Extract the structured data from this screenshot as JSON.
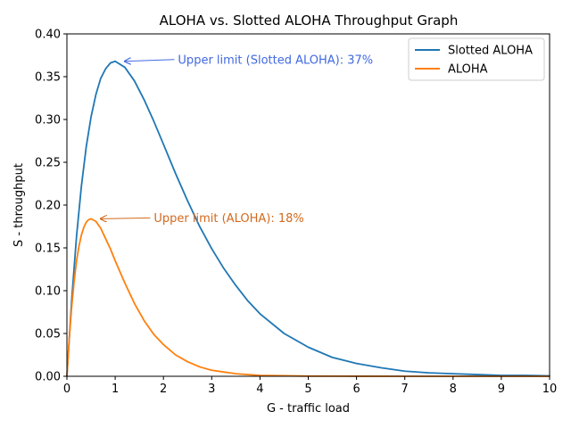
{
  "chart_data": {
    "type": "line",
    "title": "ALOHA vs. Slotted ALOHA Throughput Graph",
    "xlabel": "G - traffic load",
    "ylabel": "S - throughput",
    "xlim": [
      0,
      10
    ],
    "ylim": [
      0,
      0.4
    ],
    "x_ticks": [
      "0",
      "1",
      "2",
      "3",
      "4",
      "5",
      "6",
      "7",
      "8",
      "9",
      "10"
    ],
    "y_ticks": [
      "0.00",
      "0.05",
      "0.10",
      "0.15",
      "0.20",
      "0.25",
      "0.30",
      "0.35",
      "0.40"
    ],
    "grid": false,
    "legend_position": "upper-right",
    "series": [
      {
        "name": "Slotted ALOHA",
        "color": "#1f77b4",
        "x": [
          0,
          0.1,
          0.2,
          0.3,
          0.4,
          0.5,
          0.6,
          0.7,
          0.8,
          0.9,
          1.0,
          1.2,
          1.4,
          1.6,
          1.8,
          2.0,
          2.25,
          2.5,
          2.75,
          3.0,
          3.25,
          3.5,
          3.75,
          4.0,
          4.5,
          5.0,
          5.5,
          6.0,
          6.5,
          7.0,
          7.5,
          8.0,
          8.5,
          9.0,
          9.5,
          10.0
        ],
        "y": [
          0,
          0.09,
          0.164,
          0.222,
          0.268,
          0.303,
          0.329,
          0.348,
          0.359,
          0.366,
          0.368,
          0.361,
          0.345,
          0.323,
          0.298,
          0.271,
          0.237,
          0.205,
          0.175,
          0.149,
          0.126,
          0.106,
          0.088,
          0.073,
          0.05,
          0.034,
          0.022,
          0.015,
          0.01,
          0.006,
          0.004,
          0.003,
          0.002,
          0.001,
          0.001,
          0.0005
        ]
      },
      {
        "name": "ALOHA",
        "color": "#ff7f0e",
        "x": [
          0,
          0.05,
          0.1,
          0.15,
          0.2,
          0.25,
          0.3,
          0.35,
          0.4,
          0.45,
          0.5,
          0.6,
          0.7,
          0.8,
          0.9,
          1.0,
          1.2,
          1.4,
          1.6,
          1.8,
          2.0,
          2.25,
          2.5,
          2.75,
          3.0,
          3.5,
          4.0,
          4.5,
          5.0,
          6.0,
          7.0,
          8.0,
          9.0,
          10.0
        ],
        "y": [
          0,
          0.045,
          0.082,
          0.111,
          0.135,
          0.152,
          0.165,
          0.174,
          0.18,
          0.183,
          0.184,
          0.181,
          0.173,
          0.161,
          0.149,
          0.135,
          0.109,
          0.085,
          0.065,
          0.049,
          0.037,
          0.025,
          0.017,
          0.011,
          0.007,
          0.003,
          0.001,
          0.0006,
          0.0002,
          4e-05,
          1e-05,
          0,
          0,
          0
        ]
      }
    ],
    "annotations": [
      {
        "text": "Upper limit (Slotted ALOHA): 37%",
        "color": "#4169e1",
        "arrow_x": 1.2,
        "arrow_y": 0.368,
        "text_x": 2.3,
        "text_y": 0.37
      },
      {
        "text": "Upper limit (ALOHA): 18%",
        "color": "#d2691e",
        "arrow_x": 0.7,
        "arrow_y": 0.184,
        "text_x": 1.8,
        "text_y": 0.185
      }
    ]
  }
}
